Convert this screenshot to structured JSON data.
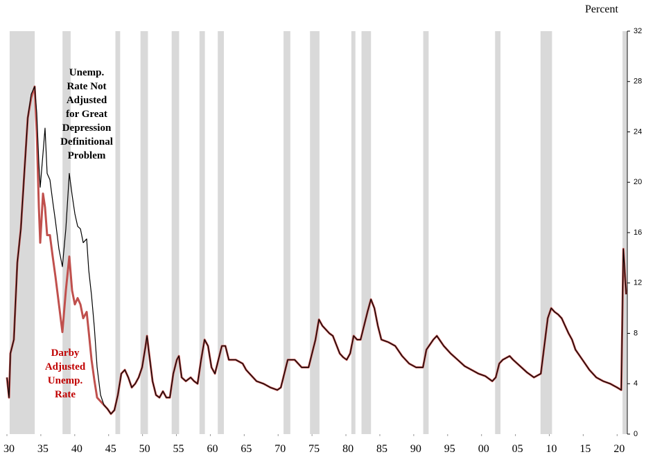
{
  "chart_data": {
    "type": "line",
    "y_label": "Percent",
    "xlim": [
      1930,
      2021.5
    ],
    "ylim": [
      0,
      32
    ],
    "yticks": [
      0,
      4,
      8,
      12,
      16,
      20,
      24,
      28,
      32
    ],
    "xticks": [
      {
        "value": 1930,
        "label": "30"
      },
      {
        "value": 1935,
        "label": "35"
      },
      {
        "value": 1940,
        "label": "40"
      },
      {
        "value": 1945,
        "label": "45"
      },
      {
        "value": 1950,
        "label": "50"
      },
      {
        "value": 1955,
        "label": "55"
      },
      {
        "value": 1960,
        "label": "60"
      },
      {
        "value": 1965,
        "label": "65"
      },
      {
        "value": 1970,
        "label": "70"
      },
      {
        "value": 1975,
        "label": "75"
      },
      {
        "value": 1980,
        "label": "80"
      },
      {
        "value": 1985,
        "label": "85"
      },
      {
        "value": 1990,
        "label": "90"
      },
      {
        "value": 1995,
        "label": "95"
      },
      {
        "value": 2000,
        "label": "00"
      },
      {
        "value": 2005,
        "label": "05"
      },
      {
        "value": 2010,
        "label": "10"
      },
      {
        "value": 2015,
        "label": "15"
      },
      {
        "value": 2020,
        "label": "20"
      }
    ],
    "recession_color": "#d9d9d9",
    "recessions": [
      [
        1930.4,
        1934.1
      ],
      [
        1938.2,
        1939.4
      ],
      [
        1946.0,
        1946.7
      ],
      [
        1949.7,
        1950.8
      ],
      [
        1954.3,
        1955.4
      ],
      [
        1958.4,
        1959.2
      ],
      [
        1961.1,
        1962.0
      ],
      [
        1970.8,
        1971.8
      ],
      [
        1974.7,
        1976.1
      ],
      [
        1980.8,
        1981.4
      ],
      [
        1982.3,
        1983.7
      ],
      [
        1991.4,
        1992.2
      ],
      [
        2002.0,
        2002.8
      ],
      [
        2008.7,
        2010.4
      ],
      [
        2020.8,
        2021.4
      ]
    ],
    "x": [
      1930.0,
      1930.31,
      1930.51,
      1931.02,
      1931.53,
      1932.05,
      1932.56,
      1933.07,
      1933.58,
      1934.09,
      1934.4,
      1934.71,
      1934.91,
      1935.32,
      1935.62,
      1935.93,
      1936.34,
      1936.75,
      1937.16,
      1937.67,
      1938.18,
      1938.69,
      1939.2,
      1939.61,
      1940.02,
      1940.43,
      1940.84,
      1941.25,
      1941.76,
      1942.07,
      1942.48,
      1942.89,
      1943.3,
      1943.81,
      1944.32,
      1944.83,
      1945.34,
      1945.85,
      1946.36,
      1946.87,
      1947.39,
      1947.9,
      1948.41,
      1948.92,
      1949.43,
      1949.94,
      1950.45,
      1950.66,
      1950.97,
      1951.48,
      1951.99,
      1952.5,
      1953.01,
      1953.52,
      1954.03,
      1954.54,
      1955.06,
      1955.36,
      1955.77,
      1956.39,
      1957.1,
      1957.61,
      1958.12,
      1958.64,
      1959.15,
      1959.66,
      1960.17,
      1960.68,
      1961.19,
      1961.7,
      1962.22,
      1962.73,
      1963.75,
      1964.77,
      1965.28,
      1965.79,
      1966.82,
      1967.84,
      1968.86,
      1969.88,
      1970.4,
      1970.91,
      1971.42,
      1972.44,
      1973.47,
      1974.49,
      1975.51,
      1976.02,
      1976.53,
      1977.56,
      1978.07,
      1979.09,
      1979.6,
      1980.11,
      1980.62,
      1981.14,
      1981.65,
      1982.16,
      1982.67,
      1983.18,
      1983.69,
      1984.2,
      1984.71,
      1985.23,
      1986.25,
      1987.27,
      1988.29,
      1989.32,
      1990.34,
      1991.36,
      1991.87,
      1992.89,
      1993.41,
      1994.43,
      1995.45,
      1996.48,
      1997.5,
      1998.52,
      1999.54,
      2000.57,
      2001.59,
      2002.1,
      2002.62,
      2003.13,
      2004.15,
      2004.66,
      2005.68,
      2006.7,
      2007.73,
      2008.75,
      2009.26,
      2009.77,
      2010.28,
      2010.79,
      2011.3,
      2011.82,
      2012.33,
      2012.84,
      2013.35,
      2013.86,
      2014.89,
      2015.91,
      2016.93,
      2017.95,
      2018.98,
      2020.0,
      2020.61,
      2020.92,
      2021.33
    ],
    "series": [
      {
        "name": "Darby Adjusted Unemp. Rate",
        "color": "#c0504d",
        "width": 3,
        "values": [
          4.5,
          2.9,
          6.4,
          7.5,
          13.6,
          16.3,
          20.7,
          25.1,
          26.7,
          27.6,
          24,
          18,
          15.2,
          19.1,
          18,
          15.8,
          15.8,
          14.1,
          12.5,
          10.3,
          8.1,
          11.4,
          14.1,
          11.4,
          10.3,
          10.8,
          10.3,
          9.2,
          9.7,
          8.1,
          5.9,
          4.3,
          2.9,
          2.6,
          2.3,
          2.0,
          1.6,
          1.9,
          3.1,
          4.8,
          5.1,
          4.5,
          3.7,
          4.0,
          4.5,
          5.3,
          7.0,
          7.8,
          6.4,
          4.2,
          3.1,
          2.9,
          3.4,
          2.9,
          2.9,
          4.8,
          5.9,
          6.2,
          4.5,
          4.2,
          4.5,
          4.2,
          4.0,
          5.9,
          7.5,
          7.0,
          5.3,
          4.8,
          5.9,
          7.0,
          7.0,
          5.9,
          5.9,
          5.6,
          5.1,
          4.8,
          4.2,
          4.0,
          3.7,
          3.5,
          3.7,
          4.8,
          5.9,
          5.9,
          5.3,
          5.3,
          7.5,
          9.1,
          8.6,
          8.0,
          7.8,
          6.4,
          6.1,
          5.9,
          6.4,
          7.8,
          7.5,
          7.5,
          8.6,
          9.7,
          10.7,
          10.0,
          8.6,
          7.5,
          7.3,
          7.0,
          6.2,
          5.6,
          5.3,
          5.3,
          6.7,
          7.5,
          7.8,
          7.0,
          6.4,
          5.9,
          5.4,
          5.1,
          4.8,
          4.6,
          4.2,
          4.5,
          5.6,
          5.9,
          6.2,
          5.9,
          5.4,
          4.9,
          4.5,
          4.8,
          7.0,
          9.2,
          10.0,
          9.7,
          9.5,
          9.2,
          8.6,
          8.0,
          7.5,
          6.7,
          5.9,
          5.1,
          4.5,
          4.2,
          4.0,
          3.7,
          3.5,
          14.7,
          11.1
        ]
      },
      {
        "name": "Unemp. Rate Not Adjusted for Great Depression Definitional Problem",
        "color": "#000000",
        "width": 1.2,
        "values": [
          4.5,
          2.9,
          6.4,
          7.5,
          13.6,
          16.3,
          20.7,
          25.1,
          27,
          27.6,
          25.5,
          21.5,
          19.6,
          22.3,
          24.3,
          20.7,
          20.2,
          18.5,
          16.9,
          14.7,
          13.3,
          16.3,
          20.7,
          19,
          17.5,
          16.5,
          16.3,
          15.2,
          15.5,
          13,
          11,
          8.5,
          5.3,
          3.1,
          2.3,
          2.0,
          1.6,
          1.9,
          3.1,
          4.8,
          5.1,
          4.5,
          3.7,
          4.0,
          4.5,
          5.3,
          7.0,
          7.8,
          6.4,
          4.2,
          3.1,
          2.9,
          3.4,
          2.9,
          2.9,
          4.8,
          5.9,
          6.2,
          4.5,
          4.2,
          4.5,
          4.2,
          4.0,
          5.9,
          7.5,
          7.0,
          5.3,
          4.8,
          5.9,
          7.0,
          7.0,
          5.9,
          5.9,
          5.6,
          5.1,
          4.8,
          4.2,
          4.0,
          3.7,
          3.5,
          3.7,
          4.8,
          5.9,
          5.9,
          5.3,
          5.3,
          7.5,
          9.1,
          8.6,
          8.0,
          7.8,
          6.4,
          6.1,
          5.9,
          6.4,
          7.8,
          7.5,
          7.5,
          8.6,
          9.7,
          10.7,
          10.0,
          8.6,
          7.5,
          7.3,
          7.0,
          6.2,
          5.6,
          5.3,
          5.3,
          6.7,
          7.5,
          7.8,
          7.0,
          6.4,
          5.9,
          5.4,
          5.1,
          4.8,
          4.6,
          4.2,
          4.5,
          5.6,
          5.9,
          6.2,
          5.9,
          5.4,
          4.9,
          4.5,
          4.8,
          7.0,
          9.2,
          10.0,
          9.7,
          9.5,
          9.2,
          8.6,
          8.0,
          7.5,
          6.7,
          5.9,
          5.1,
          4.5,
          4.2,
          4.0,
          3.7,
          3.5,
          14.7,
          11.1
        ]
      }
    ]
  }
}
